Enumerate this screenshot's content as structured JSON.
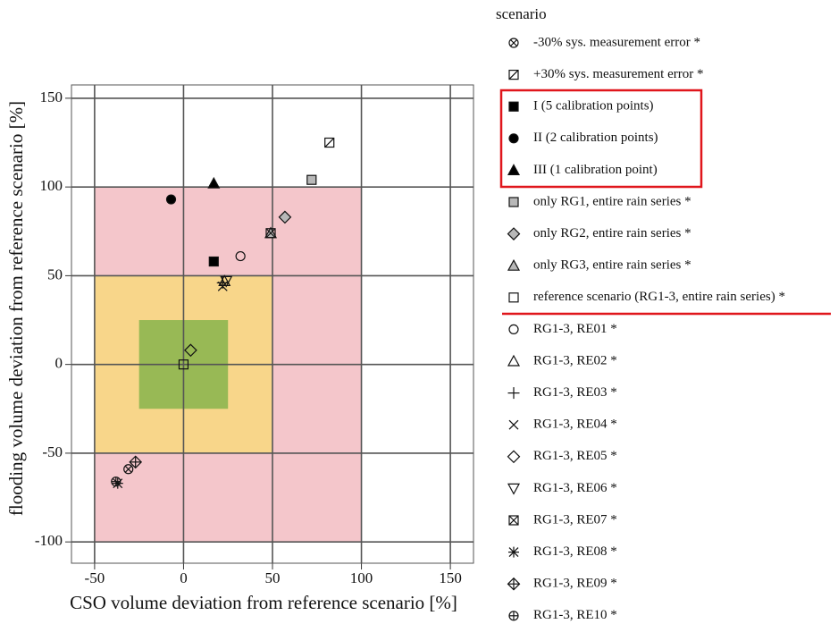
{
  "chart_data": {
    "type": "scatter",
    "x_label": "CSO volume deviation from reference scenario [%]",
    "y_label": "flooding volume deviation from reference scenario [%]",
    "legend_title": "scenario",
    "xlim": [
      -63,
      163
    ],
    "ylim": [
      -112,
      157.5
    ],
    "xticks": [
      -50,
      0,
      50,
      100,
      150
    ],
    "yticks": [
      -100,
      -50,
      0,
      50,
      100,
      150
    ],
    "grid": true,
    "zones": [
      {
        "x": [
          -50,
          100
        ],
        "y": [
          -100,
          100
        ],
        "color": "#f4c6cb"
      },
      {
        "x": [
          -50,
          50
        ],
        "y": [
          -50,
          50
        ],
        "color": "#f8d68a"
      },
      {
        "x": [
          -25,
          25
        ],
        "y": [
          -25,
          25
        ],
        "color": "#98b955"
      }
    ],
    "series": [
      {
        "name": "-30% sys. measurement error *",
        "marker": "circle-x",
        "color": "none",
        "x": [
          -31
        ],
        "y": [
          -59
        ]
      },
      {
        "name": "+30% sys. measurement error *",
        "marker": "square-diag",
        "color": "none",
        "x": [
          82
        ],
        "y": [
          125
        ]
      },
      {
        "name": "I (5 calibration points)",
        "marker": "square",
        "color": "#000000",
        "x": [
          17
        ],
        "y": [
          58
        ]
      },
      {
        "name": "II (2 calibration points)",
        "marker": "circle",
        "color": "#000000",
        "x": [
          -7
        ],
        "y": [
          93
        ]
      },
      {
        "name": "III (1 calibration point)",
        "marker": "triangle",
        "color": "#000000",
        "x": [
          17
        ],
        "y": [
          102
        ]
      },
      {
        "name": "only RG1, entire rain series *",
        "marker": "square",
        "color": "#b8b8b8",
        "x": [
          72
        ],
        "y": [
          104
        ]
      },
      {
        "name": "only RG2, entire rain series *",
        "marker": "diamond",
        "color": "#b8b8b8",
        "x": [
          57
        ],
        "y": [
          83
        ]
      },
      {
        "name": "only RG3, entire rain series *",
        "marker": "triangle",
        "color": "#b8b8b8",
        "x": [
          49
        ],
        "y": [
          74
        ]
      },
      {
        "name": "reference scenario (RG1-3, entire rain series) *",
        "marker": "square",
        "color": "none",
        "x": [
          0
        ],
        "y": [
          0
        ]
      },
      {
        "name": "RG1-3, RE01 *",
        "marker": "circle",
        "color": "none",
        "x": [
          32
        ],
        "y": [
          61
        ]
      },
      {
        "name": "RG1-3, RE02 *",
        "marker": "triangle",
        "color": "none",
        "x": [
          23
        ],
        "y": [
          47
        ]
      },
      {
        "name": "RG1-3, RE03 *",
        "marker": "plus",
        "color": "none",
        "x": [
          22
        ],
        "y": [
          46
        ]
      },
      {
        "name": "RG1-3, RE04 *",
        "marker": "x",
        "color": "none",
        "x": [
          22
        ],
        "y": [
          44
        ]
      },
      {
        "name": "RG1-3, RE05 *",
        "marker": "diamond",
        "color": "none",
        "x": [
          4
        ],
        "y": [
          8
        ]
      },
      {
        "name": "RG1-3, RE06 *",
        "marker": "triangle-down",
        "color": "none",
        "x": [
          24
        ],
        "y": [
          47
        ]
      },
      {
        "name": "RG1-3, RE07 *",
        "marker": "square-x",
        "color": "none",
        "x": [
          49
        ],
        "y": [
          74
        ]
      },
      {
        "name": "RG1-3, RE08 *",
        "marker": "asterisk",
        "color": "none",
        "x": [
          -37
        ],
        "y": [
          -67
        ]
      },
      {
        "name": "RG1-3, RE09 *",
        "marker": "diamond-plus",
        "color": "none",
        "x": [
          -27
        ],
        "y": [
          -55
        ]
      },
      {
        "name": "RG1-3, RE10 *",
        "marker": "circle-plus",
        "color": "none",
        "x": [
          -38
        ],
        "y": [
          -66
        ]
      }
    ]
  }
}
